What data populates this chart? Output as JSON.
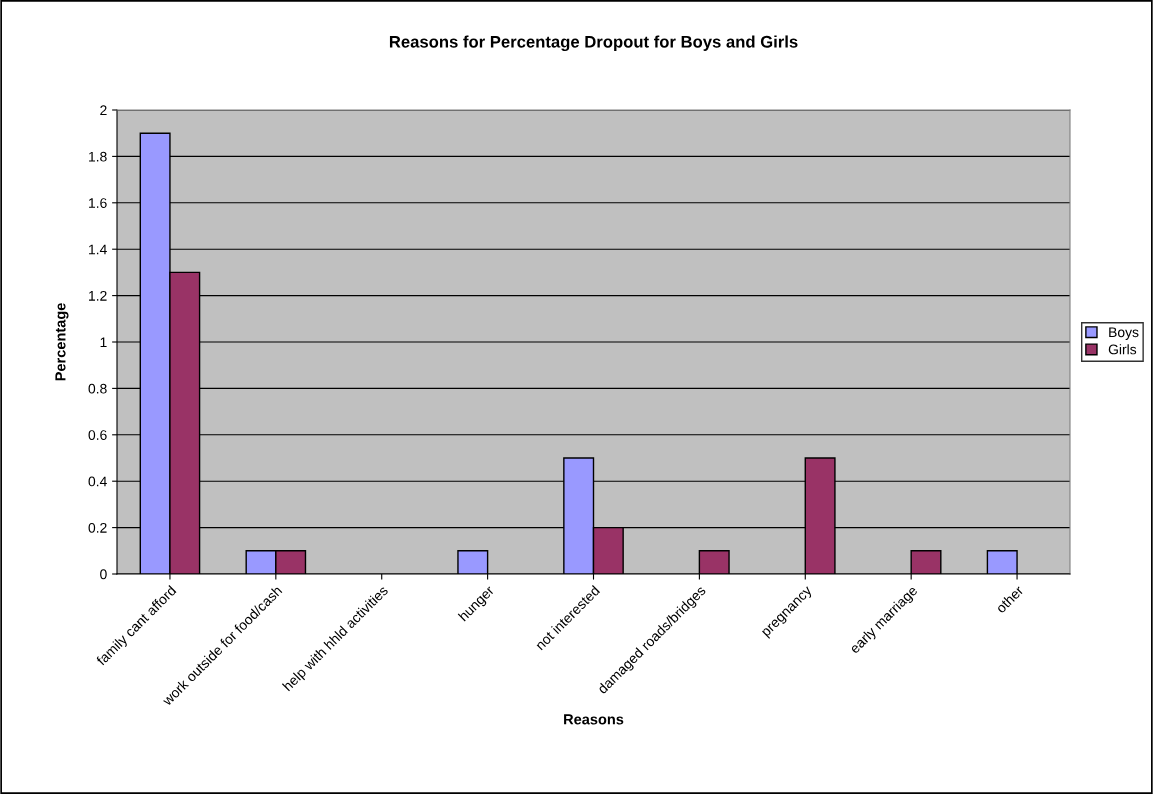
{
  "chart_data": {
    "type": "bar",
    "title": "Reasons for Percentage Dropout for Boys and Girls",
    "xlabel": "Reasons",
    "ylabel": "Percentage",
    "categories": [
      "family cant afford",
      "work outside for food/cash",
      "help with hhld activities",
      "hunger",
      "not interested",
      "damaged roads/bridges",
      "pregnancy",
      "early marriage",
      "other"
    ],
    "series": [
      {
        "name": "Boys",
        "color": "#9999ff",
        "values": [
          1.9,
          0.1,
          0,
          0.1,
          0.5,
          0,
          0,
          0,
          0.1
        ]
      },
      {
        "name": "Girls",
        "color": "#993366",
        "values": [
          1.3,
          0.1,
          0,
          0,
          0.2,
          0.1,
          0.5,
          0.1,
          0
        ]
      }
    ],
    "ylim": [
      0,
      2
    ],
    "yticks": [
      0,
      0.2,
      0.4,
      0.6,
      0.8,
      1,
      1.2,
      1.4,
      1.6,
      1.8,
      2
    ],
    "grid": "y",
    "legend": "right"
  }
}
